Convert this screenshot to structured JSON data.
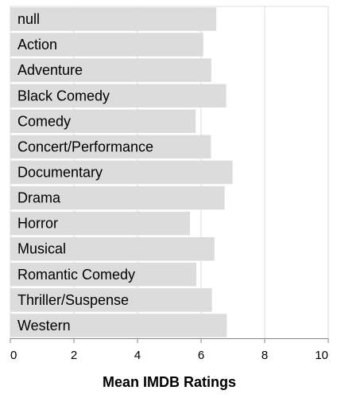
{
  "chart_data": {
    "type": "bar",
    "orientation": "horizontal",
    "categories": [
      "null",
      "Action",
      "Adventure",
      "Black Comedy",
      "Comedy",
      "Concert/Performance",
      "Documentary",
      "Drama",
      "Horror",
      "Musical",
      "Romantic Comedy",
      "Thriller/Suspense",
      "Western"
    ],
    "values": [
      6.48,
      6.07,
      6.32,
      6.79,
      5.83,
      6.31,
      6.99,
      6.74,
      5.65,
      6.42,
      5.85,
      6.34,
      6.81
    ],
    "xlabel": "Mean IMDB Ratings",
    "ylabel": "",
    "xlim": [
      0,
      10
    ],
    "xticks": [
      "0",
      "2",
      "4",
      "6",
      "8",
      "10"
    ],
    "grid": true,
    "labels_inside_bars": true,
    "colors": {
      "bar": "#dcdcdc",
      "grid": "#dddddd",
      "axis": "#888888",
      "text": "#000000"
    }
  }
}
